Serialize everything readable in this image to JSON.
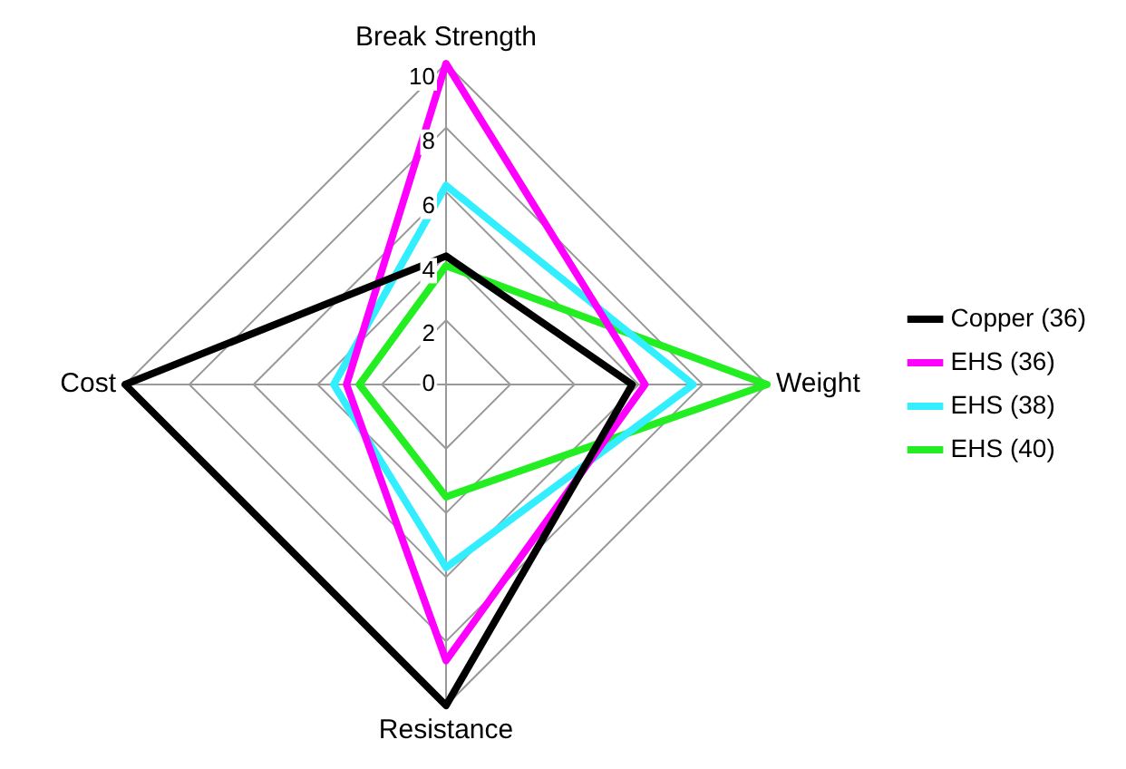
{
  "chart_data": {
    "type": "radar",
    "categories": [
      "Break Strength",
      "Weight",
      "Resistance",
      "Cost"
    ],
    "ylim": [
      0,
      10
    ],
    "yticks": [
      0,
      2,
      4,
      6,
      8,
      10
    ],
    "grid": true,
    "legend": "right",
    "marker": "none",
    "line_style": "solid",
    "series": [
      {
        "name": "Copper (36)",
        "color": "#000000",
        "values": [
          4,
          5.8,
          10,
          10
        ]
      },
      {
        "name": "EHS (36)",
        "color": "#ff00ff",
        "values": [
          10,
          6.2,
          8.6,
          3.1
        ]
      },
      {
        "name": "EHS (38)",
        "color": "#33eeff",
        "values": [
          6.2,
          7.7,
          5.7,
          3.5
        ]
      },
      {
        "name": "EHS (40)",
        "color": "#22ee22",
        "values": [
          3.7,
          10,
          3.5,
          2.7
        ]
      }
    ]
  }
}
